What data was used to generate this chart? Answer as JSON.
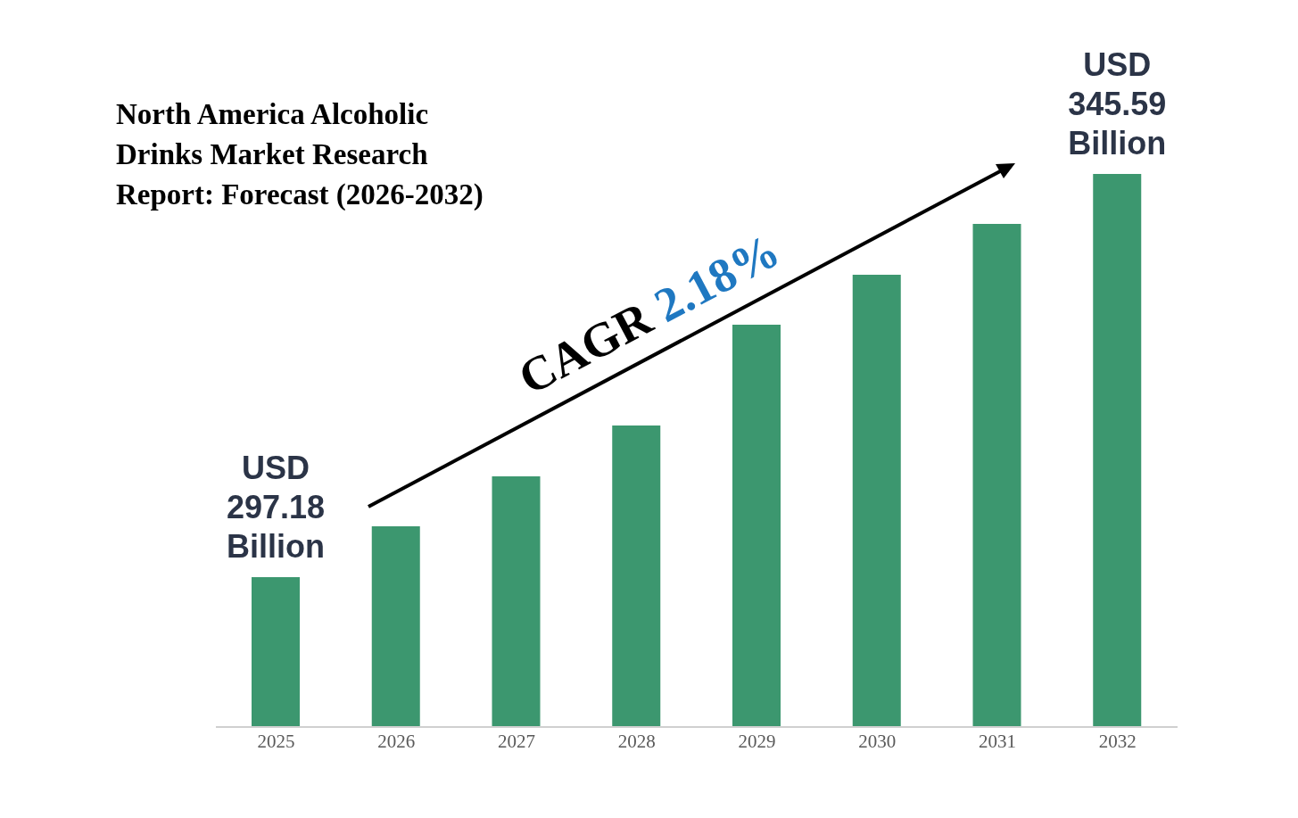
{
  "chart_data": {
    "type": "bar",
    "title": "North America Alcoholic Drinks Market Research Report: Forecast (2026-2032)",
    "categories": [
      "2025",
      "2026",
      "2027",
      "2028",
      "2029",
      "2030",
      "2031",
      "2032"
    ],
    "values": [
      297.18,
      303.3,
      309.3,
      315.4,
      327.5,
      333.5,
      339.6,
      345.59
    ],
    "color": "#3c976f",
    "ylim": [
      279.2,
      345.59
    ],
    "value_labels": [
      "USD 297.18 Billion",
      null,
      null,
      null,
      null,
      null,
      null,
      "USD 345.59 Billion"
    ],
    "annotations": [
      "CAGR 2.18%"
    ]
  }
}
